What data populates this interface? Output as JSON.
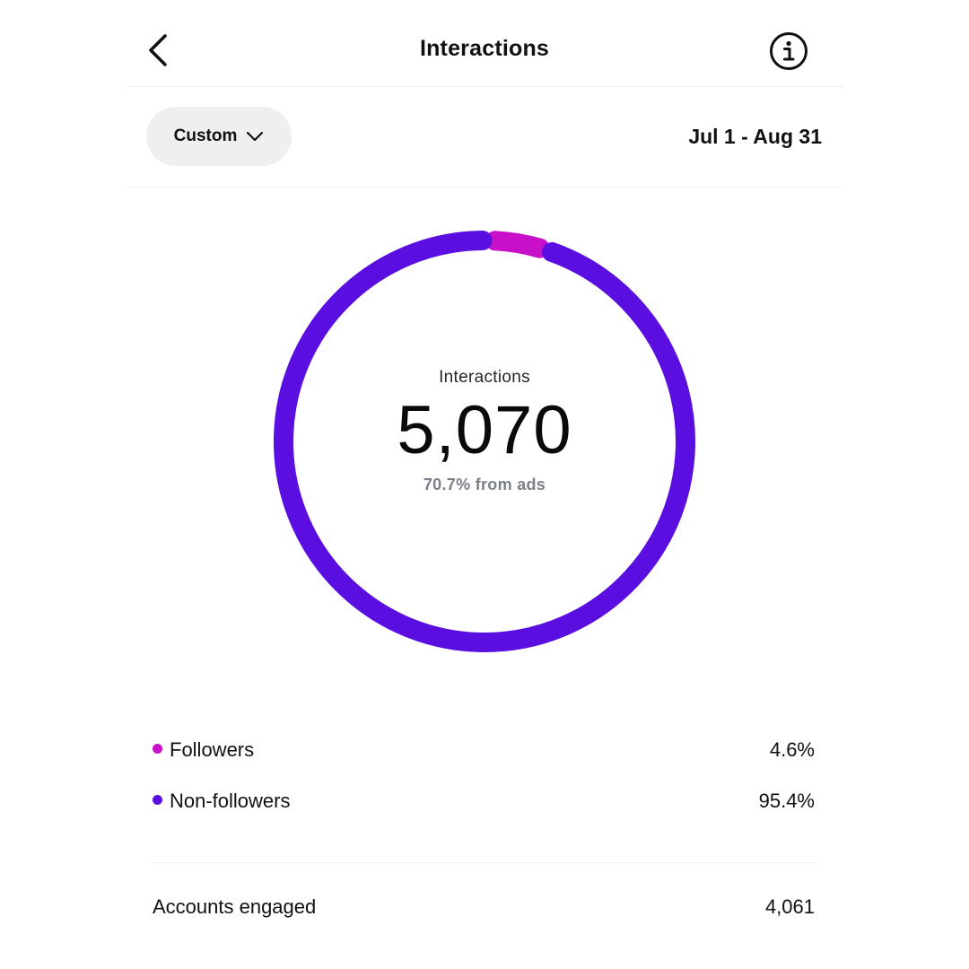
{
  "header": {
    "title": "Interactions",
    "back_icon": "chevron-left-icon",
    "info_icon": "info-icon"
  },
  "filter": {
    "selected_label": "Custom",
    "dropdown_icon": "chevron-down-icon",
    "date_range": "Jul 1 - Aug 31"
  },
  "chart_data": {
    "type": "pie",
    "donut": true,
    "center_label": "Interactions",
    "center_value": "5,070",
    "center_subtext": "70.7% from ads",
    "slices": [
      {
        "name": "Followers",
        "value": 4.6,
        "color": "#c910c9"
      },
      {
        "name": "Non-followers",
        "value": 95.4,
        "color": "#5a0fe0"
      }
    ]
  },
  "legend": [
    {
      "label": "Followers",
      "value": "4.6%",
      "color": "#c910c9"
    },
    {
      "label": "Non-followers",
      "value": "95.4%",
      "color": "#5a0fe0"
    }
  ],
  "stats": {
    "accounts_engaged_label": "Accounts engaged",
    "accounts_engaged_value": "4,061"
  },
  "colors": {
    "followers": "#c910c9",
    "non_followers": "#5a0fe0",
    "button_bg": "#efeff1",
    "muted_text": "#7a7f87"
  }
}
